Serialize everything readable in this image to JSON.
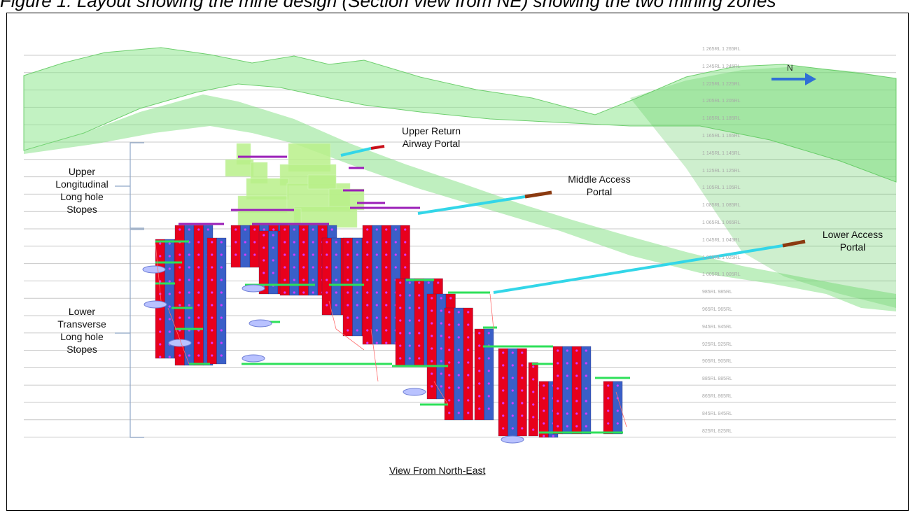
{
  "caption": "Figure 1: Layout showing the mine design (Section view from NE) showing the two mining zones",
  "labels": {
    "upper_stopes": "Upper\nLongitudinal\nLong hole\nStopes",
    "lower_stopes": "Lower\nTransverse\nLong hole\nStopes",
    "upper_return_portal": "Upper Return\nAirway Portal",
    "middle_access_portal": "Middle Access\nPortal",
    "lower_access_portal": "Lower Access\nPortal",
    "view": "View From North-East",
    "north": "N"
  },
  "rl_levels": [
    "1 265RL",
    "1 245RL",
    "1 225RL",
    "1 205RL",
    "1 185RL",
    "1 165RL",
    "1 145RL",
    "1 125RL",
    "1 105RL",
    "1 085RL",
    "1 065RL",
    "1 045RL",
    "1 025RL",
    "1 005RL",
    "985RL",
    "965RL",
    "945RL",
    "925RL",
    "905RL",
    "885RL",
    "865RL",
    "845RL",
    "825RL"
  ],
  "colors": {
    "terrain": "#7fe07f",
    "stope_red": "#e8001c",
    "stope_blue": "#3a5fc8",
    "stope_light": "#b8f08a",
    "decline": "#2ee05a",
    "portal_tunnel": "#33d6e8",
    "portal_end": "#8b3a10",
    "north_arrow": "#2f6fd6"
  }
}
